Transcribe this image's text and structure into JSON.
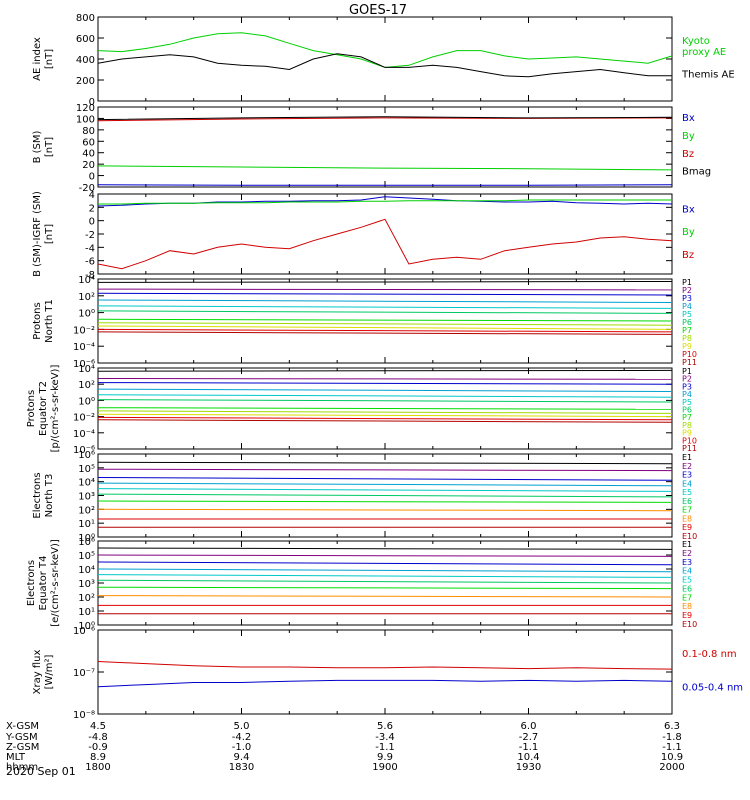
{
  "title": "GOES-17",
  "date_label": "2020 Sep 01",
  "colors": {
    "black": "#000000",
    "green": "#00d000",
    "blue": "#0000cc",
    "red": "#d00000",
    "ch": [
      "#000000",
      "#800080",
      "#0000cc",
      "#00a0d0",
      "#00c8c8",
      "#00c864",
      "#00dc00",
      "#a0dc00",
      "#dcdc00",
      "#ff8c00",
      "#e00000",
      "#b40000"
    ]
  },
  "ephemeris": {
    "rows": [
      {
        "label": "X-GSM",
        "values": [
          "4.5",
          "5.0",
          "5.6",
          "6.0",
          "6.3"
        ]
      },
      {
        "label": "Y-GSM",
        "values": [
          "-4.8",
          "-4.2",
          "-3.4",
          "-2.7",
          "-1.8"
        ]
      },
      {
        "label": "Z-GSM",
        "values": [
          "-0.9",
          "-1.0",
          "-1.1",
          "-1.1",
          "-1.1"
        ]
      },
      {
        "label": "MLT",
        "values": [
          "8.9",
          "9.4",
          "9.9",
          "10.4",
          "10.9"
        ]
      },
      {
        "label": "hhmm",
        "values": [
          "1800",
          "1830",
          "1900",
          "1930",
          "2000"
        ]
      }
    ]
  },
  "chart_data": [
    {
      "type": "line",
      "id": "ae",
      "ylabel": "AE index\n[nT]",
      "ylim": [
        0,
        800
      ],
      "scale": "linear",
      "yticks": [
        0,
        200,
        400,
        600,
        800
      ],
      "ytick_labels": [
        "0",
        "200",
        "400",
        "600",
        "800"
      ],
      "x": [
        0,
        5,
        10,
        15,
        20,
        25,
        30,
        35,
        40,
        45,
        50,
        55,
        60,
        65,
        70,
        75,
        80,
        85,
        90,
        95,
        100,
        105,
        110,
        115,
        120
      ],
      "series": [
        {
          "name": "Kyoto\nproxy AE",
          "color": "#00d000",
          "values": [
            480,
            470,
            500,
            540,
            600,
            640,
            650,
            620,
            550,
            480,
            440,
            400,
            320,
            340,
            420,
            480,
            480,
            430,
            400,
            410,
            420,
            400,
            380,
            360,
            430
          ]
        },
        {
          "name": "Themis AE",
          "color": "#000000",
          "values": [
            360,
            400,
            420,
            440,
            420,
            360,
            340,
            330,
            300,
            400,
            450,
            420,
            320,
            320,
            340,
            320,
            280,
            240,
            230,
            260,
            280,
            300,
            270,
            240,
            240
          ]
        }
      ]
    },
    {
      "type": "line",
      "id": "bsm",
      "ylabel": "B (SM)\n[nT]",
      "ylim": [
        -20,
        120
      ],
      "scale": "linear",
      "yticks": [
        -20,
        0,
        20,
        40,
        60,
        80,
        100,
        120
      ],
      "ytick_labels": [
        "-20",
        "0",
        "20",
        "40",
        "60",
        "80",
        "100",
        "120"
      ],
      "x": [
        0,
        30,
        60,
        90,
        120
      ],
      "series": [
        {
          "name": "Bx",
          "color": "#0000cc",
          "values": [
            -16,
            -17,
            -17,
            -17,
            -16
          ]
        },
        {
          "name": "By",
          "color": "#00d000",
          "values": [
            17,
            15,
            13,
            12,
            10
          ]
        },
        {
          "name": "Bz",
          "color": "#d00000",
          "values": [
            96,
            99,
            101,
            100,
            101
          ]
        },
        {
          "name": "Bmag",
          "color": "#000000",
          "values": [
            98,
            101,
            103,
            101,
            102
          ]
        }
      ]
    },
    {
      "type": "line",
      "id": "bigrf",
      "ylabel": "B (SM)-IGRF (SM)\n[nT]",
      "ylim": [
        -8,
        4
      ],
      "scale": "linear",
      "yticks": [
        -8,
        -6,
        -4,
        -2,
        0,
        2,
        4
      ],
      "ytick_labels": [
        "-8",
        "-6",
        "-4",
        "-2",
        "0",
        "2",
        "4"
      ],
      "x": [
        0,
        5,
        10,
        15,
        20,
        25,
        30,
        35,
        40,
        45,
        50,
        55,
        60,
        65,
        70,
        75,
        80,
        85,
        90,
        95,
        100,
        105,
        110,
        115,
        120
      ],
      "series": [
        {
          "name": "Bx",
          "color": "#0000cc",
          "values": [
            2.2,
            2.3,
            2.5,
            2.6,
            2.6,
            2.8,
            2.8,
            2.9,
            2.9,
            3.0,
            3.0,
            3.1,
            3.6,
            3.4,
            3.2,
            3.0,
            2.9,
            2.8,
            2.8,
            2.9,
            2.7,
            2.6,
            2.5,
            2.6,
            2.5
          ]
        },
        {
          "name": "By",
          "color": "#00d000",
          "values": [
            2.5,
            2.5,
            2.6,
            2.6,
            2.6,
            2.7,
            2.7,
            2.7,
            2.8,
            2.8,
            2.8,
            2.9,
            2.9,
            3.0,
            3.0,
            3.0,
            3.0,
            3.0,
            3.1,
            3.1,
            3.1,
            3.1,
            3.1,
            3.1,
            3.1
          ]
        },
        {
          "name": "Bz",
          "color": "#d00000",
          "values": [
            -6.5,
            -7.2,
            -6,
            -4.5,
            -5,
            -4,
            -3.5,
            -4,
            -4.2,
            -3,
            -2,
            -1,
            0.2,
            -6.5,
            -5.8,
            -5.5,
            -5.8,
            -4.5,
            -4.0,
            -3.5,
            -3.2,
            -2.6,
            -2.4,
            -2.8,
            -3.0
          ]
        }
      ]
    },
    {
      "type": "line",
      "id": "prot_n",
      "ylabel": "Protons\nNorth T1",
      "ylim": [
        -6,
        4
      ],
      "scale": "log",
      "yticks": [
        -6,
        -4,
        -2,
        0,
        2,
        4
      ],
      "ytick_labels": [
        "10⁻⁶",
        "10⁻⁴",
        "10⁻²",
        "10⁰",
        "10²",
        "10⁴"
      ],
      "x": [
        0,
        120
      ],
      "series": [
        {
          "name": "P1",
          "color": "#000000",
          "values": [
            3.6,
            3.7
          ]
        },
        {
          "name": "P2",
          "color": "#800080",
          "values": [
            2.8,
            2.7
          ]
        },
        {
          "name": "P3",
          "color": "#0000cc",
          "values": [
            2.3,
            2.1
          ]
        },
        {
          "name": "P4",
          "color": "#00a0d0",
          "values": [
            1.5,
            1.2
          ]
        },
        {
          "name": "P5",
          "color": "#00c8c8",
          "values": [
            0.8,
            0.5
          ]
        },
        {
          "name": "P6",
          "color": "#00c864",
          "values": [
            0.2,
            -0.1
          ]
        },
        {
          "name": "P7",
          "color": "#00dc00",
          "values": [
            -0.8,
            -1.0
          ]
        },
        {
          "name": "P8",
          "color": "#a0dc00",
          "values": [
            -1.2,
            -1.5
          ]
        },
        {
          "name": "P9",
          "color": "#dcdc00",
          "values": [
            -1.6,
            -2.0
          ]
        },
        {
          "name": "P10",
          "color": "#e00000",
          "values": [
            -2.0,
            -2.3
          ]
        },
        {
          "name": "P11",
          "color": "#b40000",
          "values": [
            -2.3,
            -2.6
          ]
        }
      ]
    },
    {
      "type": "line",
      "id": "prot_e",
      "ylabel": "Protons\nEquator T2\n[p/(cm²-s-sr-keV)]",
      "ylim": [
        -6,
        4
      ],
      "scale": "log",
      "yticks": [
        -6,
        -4,
        -2,
        0,
        2,
        4
      ],
      "ytick_labels": [
        "10⁻⁶",
        "10⁻⁴",
        "10⁻²",
        "10⁰",
        "10²",
        "10⁴"
      ],
      "x": [
        0,
        120
      ],
      "series": [
        {
          "name": "P1",
          "color": "#000000",
          "values": [
            3.6,
            3.7
          ]
        },
        {
          "name": "P2",
          "color": "#800080",
          "values": [
            2.7,
            2.6
          ]
        },
        {
          "name": "P3",
          "color": "#0000cc",
          "values": [
            2.2,
            2.0
          ]
        },
        {
          "name": "P4",
          "color": "#00a0d0",
          "values": [
            1.4,
            1.1
          ]
        },
        {
          "name": "P5",
          "color": "#00c8c8",
          "values": [
            0.7,
            0.4
          ]
        },
        {
          "name": "P6",
          "color": "#00c864",
          "values": [
            0.1,
            -0.2
          ]
        },
        {
          "name": "P7",
          "color": "#00dc00",
          "values": [
            -0.9,
            -1.1
          ]
        },
        {
          "name": "P8",
          "color": "#a0dc00",
          "values": [
            -1.3,
            -1.6
          ]
        },
        {
          "name": "P9",
          "color": "#dcdc00",
          "values": [
            -1.7,
            -2.0
          ]
        },
        {
          "name": "P10",
          "color": "#e00000",
          "values": [
            -2.1,
            -2.4
          ]
        },
        {
          "name": "P11",
          "color": "#b40000",
          "values": [
            -2.4,
            -2.7
          ]
        }
      ]
    },
    {
      "type": "line",
      "id": "elec_n",
      "ylabel": "Electrons\nNorth T3",
      "ylim": [
        0,
        6
      ],
      "scale": "log",
      "yticks": [
        0,
        1,
        2,
        3,
        4,
        5,
        6
      ],
      "ytick_labels": [
        "10⁰",
        "10¹",
        "10²",
        "10³",
        "10⁴",
        "10⁵",
        "10⁶"
      ],
      "x": [
        0,
        120
      ],
      "series": [
        {
          "name": "E1",
          "color": "#000000",
          "values": [
            5.4,
            5.3
          ]
        },
        {
          "name": "E2",
          "color": "#800080",
          "values": [
            4.9,
            4.8
          ]
        },
        {
          "name": "E3",
          "color": "#0000cc",
          "values": [
            4.3,
            4.1
          ]
        },
        {
          "name": "E4",
          "color": "#00a0d0",
          "values": [
            3.9,
            3.7
          ]
        },
        {
          "name": "E5",
          "color": "#00c8c8",
          "values": [
            3.5,
            3.3
          ]
        },
        {
          "name": "E6",
          "color": "#00c864",
          "values": [
            3.1,
            2.9
          ]
        },
        {
          "name": "E7",
          "color": "#00dc00",
          "values": [
            2.6,
            2.5
          ]
        },
        {
          "name": "E8",
          "color": "#ff8c00",
          "values": [
            2.0,
            1.9
          ]
        },
        {
          "name": "E9",
          "color": "#e00000",
          "values": [
            1.3,
            1.3
          ]
        },
        {
          "name": "E10",
          "color": "#b40000",
          "values": [
            0.7,
            0.7
          ]
        }
      ]
    },
    {
      "type": "line",
      "id": "elec_e",
      "ylabel": "Electrons\nEquator T4\n[e/(cm²-s-sr-keV)]",
      "ylim": [
        0,
        6
      ],
      "scale": "log",
      "yticks": [
        0,
        1,
        2,
        3,
        4,
        5,
        6
      ],
      "ytick_labels": [
        "10⁰",
        "10¹",
        "10²",
        "10³",
        "10⁴",
        "10⁵",
        "10⁶"
      ],
      "x": [
        0,
        120
      ],
      "series": [
        {
          "name": "E1",
          "color": "#000000",
          "values": [
            5.5,
            5.4
          ]
        },
        {
          "name": "E2",
          "color": "#800080",
          "values": [
            5.0,
            4.9
          ]
        },
        {
          "name": "E3",
          "color": "#0000cc",
          "values": [
            4.5,
            4.3
          ]
        },
        {
          "name": "E4",
          "color": "#00a0d0",
          "values": [
            4.0,
            3.8
          ]
        },
        {
          "name": "E5",
          "color": "#00c8c8",
          "values": [
            3.6,
            3.4
          ]
        },
        {
          "name": "E6",
          "color": "#00c864",
          "values": [
            3.2,
            3.0
          ]
        },
        {
          "name": "E7",
          "color": "#00dc00",
          "values": [
            2.7,
            2.6
          ]
        },
        {
          "name": "E8",
          "color": "#ff8c00",
          "values": [
            2.1,
            2.0
          ]
        },
        {
          "name": "E9",
          "color": "#e00000",
          "values": [
            1.4,
            1.4
          ]
        },
        {
          "name": "E10",
          "color": "#b40000",
          "values": [
            0.8,
            0.8
          ]
        }
      ]
    },
    {
      "type": "line",
      "id": "xray",
      "ylabel": "Xray flux\n[W/m²]",
      "ylim": [
        -8,
        -6
      ],
      "scale": "log",
      "yticks": [
        -8,
        -7,
        -6
      ],
      "ytick_labels": [
        "10⁻⁸",
        "10⁻⁷",
        "10⁻⁶"
      ],
      "x": [
        0,
        10,
        20,
        30,
        40,
        50,
        60,
        70,
        80,
        90,
        100,
        110,
        120
      ],
      "series": [
        {
          "name": "0.1-0.8 nm",
          "color": "#d00000",
          "values": [
            -6.75,
            -6.8,
            -6.85,
            -6.88,
            -6.88,
            -6.9,
            -6.9,
            -6.88,
            -6.9,
            -6.92,
            -6.9,
            -6.92,
            -6.93
          ]
        },
        {
          "name": "0.05-0.4 nm",
          "color": "#0000cc",
          "values": [
            -7.35,
            -7.3,
            -7.25,
            -7.25,
            -7.22,
            -7.2,
            -7.2,
            -7.2,
            -7.22,
            -7.2,
            -7.22,
            -7.2,
            -7.22
          ]
        }
      ]
    }
  ]
}
